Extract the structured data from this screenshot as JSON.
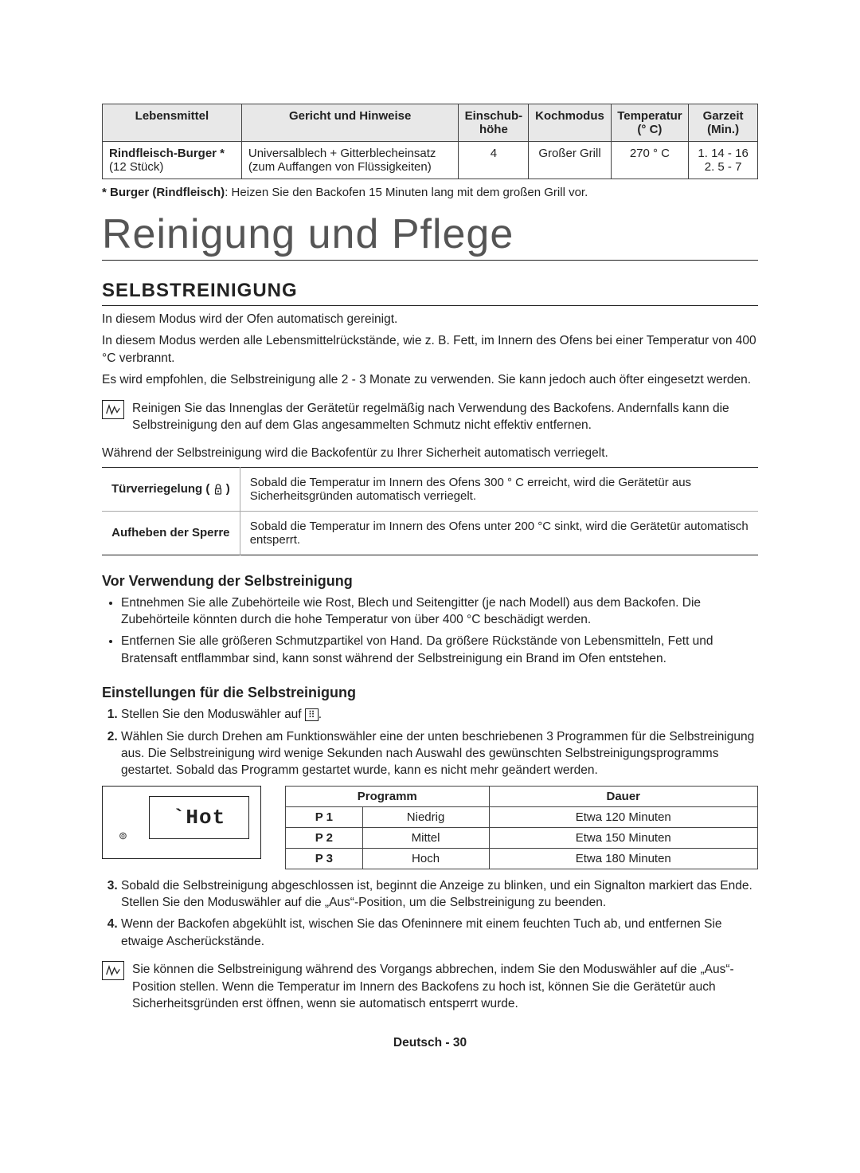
{
  "table1": {
    "headers": [
      "Lebensmittel",
      "Gericht und Hinweise",
      "Einschub-\nhöhe",
      "Kochmodus",
      "Temperatur\n(° C)",
      "Garzeit\n(Min.)"
    ],
    "row": {
      "food_line1": "Rindfleisch-Burger *",
      "food_line2": "(12 Stück)",
      "hint_line1": "Universalblech + Gitterblecheinsatz",
      "hint_line2": "(zum Auffangen von Flüssigkeiten)",
      "level": "4",
      "mode": "Großer Grill",
      "temp": "270 ° C",
      "time_line1": "1. 14 - 16",
      "time_line2": "2. 5 - 7"
    }
  },
  "footnote_bold": "* Burger (Rindfleisch)",
  "footnote_rest": ": Heizen Sie den Backofen 15 Minuten lang mit dem großen Grill vor.",
  "main_title": "Reinigung und Pflege",
  "section_title": "SELBSTREINIGUNG",
  "intro": {
    "p1": "In diesem Modus wird der Ofen automatisch gereinigt.",
    "p2": "In diesem Modus werden alle Lebensmittelrückstände, wie z. B. Fett, im Innern des Ofens bei einer Temperatur von 400 °C verbrannt.",
    "p3": "Es wird empfohlen, die Selbstreinigung alle 2 - 3 Monate zu verwenden. Sie kann jedoch auch öfter eingesetzt werden."
  },
  "note1": "Reinigen Sie das Innenglas der Gerätetür regelmäßig nach Verwendung des Backofens. Andernfalls kann die Selbstreinigung den auf dem Glas angesammelten Schmutz nicht effektiv entfernen.",
  "lock_intro": "Während der Selbstreinigung wird die Backofentür zu Ihrer Sicherheit automatisch verriegelt.",
  "lock_table": {
    "row1_label": "Türverriegelung (",
    "row1_label_suffix": ")",
    "row1_text": "Sobald die Temperatur im Innern des Ofens 300 ° C erreicht, wird die Gerätetür aus Sicherheitsgründen automatisch verriegelt.",
    "row2_label": "Aufheben der Sperre",
    "row2_text": "Sobald die Temperatur im Innern des Ofens unter 200 °C sinkt, wird die Gerätetür automatisch entsperrt."
  },
  "sub1_title": "Vor Verwendung der Selbstreinigung",
  "sub1_bullets": [
    "Entnehmen Sie alle Zubehörteile wie Rost, Blech und Seitengitter (je nach Modell) aus dem Backofen. Die Zubehörteile könnten durch die hohe Temperatur von über 400 °C beschädigt werden.",
    "Entfernen Sie alle größeren Schmutzpartikel von Hand. Da größere Rückstände von Lebensmitteln, Fett und Bratensaft entflammbar sind, kann sonst während der Selbstreinigung ein Brand im Ofen entstehen."
  ],
  "sub2_title": "Einstellungen für die Selbstreinigung",
  "step1_pre": "Stellen Sie den Moduswähler auf ",
  "step1_post": ".",
  "step2": "Wählen Sie durch Drehen am Funktionswähler eine der unten beschriebenen 3 Programmen für die Selbstreinigung aus. Die Selbstreinigung wird wenige Sekunden nach Auswahl des gewünschten Selbstreinigungsprogramms gestartet. Sobald das Programm gestartet wurde, kann es nicht mehr geändert werden.",
  "display_label": "`Hot",
  "display_dot": "⊚",
  "prog_table": {
    "header_left": "Programm",
    "header_right": "Dauer",
    "rows": [
      {
        "code": "P 1",
        "level": "Niedrig",
        "dur": "Etwa 120 Minuten"
      },
      {
        "code": "P 2",
        "level": "Mittel",
        "dur": "Etwa 150 Minuten"
      },
      {
        "code": "P 3",
        "level": "Hoch",
        "dur": "Etwa 180 Minuten"
      }
    ]
  },
  "step3": "Sobald die Selbstreinigung abgeschlossen ist, beginnt die Anzeige zu blinken, und ein Signalton markiert das Ende. Stellen Sie den Moduswähler auf die „Aus“-Position, um die Selbstreinigung zu beenden.",
  "step4": "Wenn der Backofen abgekühlt ist, wischen Sie das Ofeninnere mit einem feuchten Tuch ab, und entfernen Sie etwaige Ascherückstände.",
  "note2": "Sie können die Selbstreinigung während des Vorgangs abbrechen, indem Sie den Moduswähler auf die „Aus“-Position stellen. Wenn die Temperatur im Innern des Backofens zu hoch ist, können Sie die Gerätetür auch Sicherheitsgründen erst öffnen, wenn sie automatisch entsperrt wurde.",
  "pagenum": "Deutsch - 30"
}
